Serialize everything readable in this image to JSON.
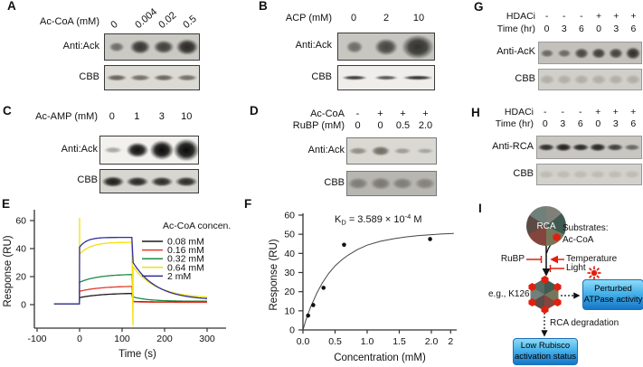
{
  "blots": {
    "A": {
      "letter": "A",
      "headers": [
        {
          "label": "Ac-CoA (mM)",
          "values": [
            "0",
            "0.004",
            "0.02",
            "0.5"
          ]
        }
      ],
      "rows": [
        {
          "label": "Anti:Ack",
          "bg": "#cac9c3",
          "border": "#3a3a3a",
          "color": "32,30,28",
          "bands": [
            {
              "i": 0.55,
              "w": 17,
              "h": 11
            },
            {
              "i": 0.88,
              "w": 23,
              "h": 16
            },
            {
              "i": 0.82,
              "w": 23,
              "h": 15
            },
            {
              "i": 0.95,
              "w": 25,
              "h": 18
            }
          ]
        },
        {
          "label": "CBB",
          "bg": "#dbdad4",
          "border": "#3a3a3a",
          "color": "72,66,58",
          "bands": [
            {
              "i": 0.8,
              "w": 23,
              "h": 7
            },
            {
              "i": 0.72,
              "w": 23,
              "h": 7
            },
            {
              "i": 0.78,
              "w": 23,
              "h": 7
            },
            {
              "i": 0.72,
              "w": 23,
              "h": 7
            }
          ]
        }
      ]
    },
    "B": {
      "letter": "B",
      "headers": [
        {
          "label": "ACP (mM)",
          "values": [
            "0",
            "2",
            "10"
          ]
        }
      ],
      "rows": [
        {
          "label": "Anti:Ack",
          "bg": "#c7c6c0",
          "border": "#3a3a3a",
          "color": "45,45,42",
          "bands": [
            {
              "i": 0.6,
              "w": 19,
              "h": 14
            },
            {
              "i": 0.85,
              "w": 26,
              "h": 19
            },
            {
              "i": 0.98,
              "w": 36,
              "h": 27
            }
          ]
        },
        {
          "label": "CBB",
          "bg": "#efeeea",
          "border": "#3a3a3a",
          "color": "28,28,26",
          "bands": [
            {
              "i": 0.88,
              "w": 28,
              "h": 5
            },
            {
              "i": 0.75,
              "w": 26,
              "h": 5
            },
            {
              "i": 0.92,
              "w": 34,
              "h": 5
            }
          ]
        }
      ]
    },
    "C": {
      "letter": "C",
      "headers": [
        {
          "label": "Ac-AMP (mM)",
          "values": [
            "0",
            "1",
            "3",
            "10"
          ]
        }
      ],
      "rows": [
        {
          "label": "Anti:Ack",
          "bg": "#f2f1ed",
          "border": "#3a3a3a",
          "color": "8,8,8",
          "bands": [
            {
              "i": 0.32,
              "w": 20,
              "h": 7
            },
            {
              "i": 0.97,
              "w": 25,
              "h": 17
            },
            {
              "i": 1,
              "w": 27,
              "h": 22
            },
            {
              "i": 1,
              "w": 29,
              "h": 25
            }
          ]
        },
        {
          "label": "CBB",
          "bg": "#d7d6d0",
          "border": "#3a3a3a",
          "color": "18,18,16",
          "bands": [
            {
              "i": 0.95,
              "w": 25,
              "h": 12
            },
            {
              "i": 0.9,
              "w": 25,
              "h": 11
            },
            {
              "i": 0.88,
              "w": 25,
              "h": 11
            },
            {
              "i": 0.88,
              "w": 25,
              "h": 11
            }
          ]
        }
      ]
    },
    "D": {
      "letter": "D",
      "headers": [
        {
          "label": "Ac-CoA",
          "values": [
            "-",
            "+",
            "+",
            "+"
          ]
        },
        {
          "label": "RuBP (mM)",
          "values": [
            "0",
            "0",
            "0.5",
            "2.0"
          ]
        }
      ],
      "rows": [
        {
          "label": "Anti:Ack",
          "bg": "#d9d8d2",
          "border": "#777777",
          "color": "82,78,68",
          "bands": [
            {
              "i": 0.55,
              "w": 21,
              "h": 8
            },
            {
              "i": 0.8,
              "w": 21,
              "h": 11
            },
            {
              "i": 0.45,
              "w": 19,
              "h": 7
            },
            {
              "i": 0.38,
              "w": 19,
              "h": 6
            }
          ]
        },
        {
          "label": "CBB",
          "bg": "#b7b6b1",
          "border": "#777777",
          "color": "96,92,86",
          "bands": [
            {
              "i": 0.65,
              "w": 23,
              "h": 13
            },
            {
              "i": 0.7,
              "w": 23,
              "h": 14
            },
            {
              "i": 0.65,
              "w": 23,
              "h": 13
            },
            {
              "i": 0.6,
              "w": 23,
              "h": 13
            }
          ]
        }
      ]
    },
    "G": {
      "letter": "G",
      "headers": [
        {
          "label": "HDACi",
          "values": [
            "-",
            "-",
            "-",
            "+",
            "+",
            "+"
          ]
        },
        {
          "label": "Time (hr)",
          "values": [
            "0",
            "3",
            "6",
            "0",
            "3",
            "6"
          ]
        }
      ],
      "rows": [
        {
          "label": "Anti-AcK",
          "bg": "#c3c1bb",
          "border": "#999999",
          "color": "42,40,36",
          "bands": [
            {
              "i": 0.6,
              "w": 15,
              "h": 9
            },
            {
              "i": 0.6,
              "w": 15,
              "h": 9
            },
            {
              "i": 0.82,
              "w": 16,
              "h": 12
            },
            {
              "i": 0.88,
              "w": 16,
              "h": 12
            },
            {
              "i": 0.85,
              "w": 16,
              "h": 12
            },
            {
              "i": 0.97,
              "w": 17,
              "h": 14
            }
          ]
        },
        {
          "label": "CBB",
          "bg": "#d1cfc9",
          "border": "#999999",
          "color": "150,146,138",
          "bands": [
            {
              "i": 0.55,
              "w": 17,
              "h": 11
            },
            {
              "i": 0.55,
              "w": 17,
              "h": 11
            },
            {
              "i": 0.55,
              "w": 17,
              "h": 11
            },
            {
              "i": 0.55,
              "w": 17,
              "h": 11
            },
            {
              "i": 0.55,
              "w": 17,
              "h": 11
            },
            {
              "i": 0.55,
              "w": 17,
              "h": 11
            }
          ]
        }
      ]
    },
    "H": {
      "letter": "H",
      "headers": [
        {
          "label": "HDACi",
          "values": [
            "-",
            "-",
            "-",
            "+",
            "+",
            "+"
          ]
        },
        {
          "label": "Time (hr)",
          "values": [
            "0",
            "3",
            "6",
            "0",
            "3",
            "6"
          ]
        }
      ],
      "rows": [
        {
          "label": "Anti-RCA",
          "bg": "#c9c7c1",
          "border": "#999999",
          "color": "22,20,18",
          "bands": [
            {
              "i": 0.88,
              "w": 19,
              "h": 8
            },
            {
              "i": 0.95,
              "w": 19,
              "h": 9
            },
            {
              "i": 0.9,
              "w": 19,
              "h": 8
            },
            {
              "i": 0.92,
              "w": 19,
              "h": 9
            },
            {
              "i": 0.78,
              "w": 19,
              "h": 8
            },
            {
              "i": 0.55,
              "w": 18,
              "h": 7
            }
          ]
        },
        {
          "label": "CBB",
          "bg": "#d3d1cb",
          "border": "#999999",
          "color": "158,154,146",
          "bands": [
            {
              "i": 0.4,
              "w": 18,
              "h": 9
            },
            {
              "i": 0.4,
              "w": 18,
              "h": 9
            },
            {
              "i": 0.4,
              "w": 18,
              "h": 9
            },
            {
              "i": 0.4,
              "w": 18,
              "h": 9
            },
            {
              "i": 0.4,
              "w": 18,
              "h": 9
            },
            {
              "i": 0.4,
              "w": 18,
              "h": 9
            }
          ]
        }
      ]
    }
  },
  "chart_data": [
    {
      "panel_letter": "E",
      "type": "line",
      "xlabel": "Time (s)",
      "ylabel": "Response (RU)",
      "x_ticks": [
        -100,
        0,
        100,
        200,
        300
      ],
      "y_ticks": [
        0,
        20,
        40,
        60
      ],
      "xlim": [
        -113,
        345
      ],
      "ylim": [
        -17,
        67
      ],
      "legend_title": "Ac-CoA concen.",
      "association_start": 0,
      "association_end": 125,
      "series": [
        {
          "name": "0.08 mM",
          "color": "#1a1a1a",
          "baseline": 0.5,
          "assoc_start": 5,
          "plateau": 8,
          "assoc_tau": 55,
          "post_drop": 2.3,
          "final": 1.8,
          "dissoc_tau": 45
        },
        {
          "name": "0.16 mM",
          "color": "#e23a28",
          "baseline": 0.5,
          "assoc_start": 9.5,
          "plateau": 13,
          "assoc_tau": 50,
          "post_drop": 2.0,
          "final": 1.6,
          "dissoc_tau": 45
        },
        {
          "name": "0.32 mM",
          "color": "#1d8c46",
          "baseline": 0.5,
          "assoc_start": 16,
          "plateau": 21.5,
          "assoc_tau": 45,
          "post_drop": 5.5,
          "final": 2.4,
          "dissoc_tau": 38
        },
        {
          "name": "0.64 mM",
          "color": "#f4e10a",
          "baseline": 0.5,
          "assoc_start": 36,
          "plateau": 44.5,
          "assoc_tau": 26,
          "post_drop": 27,
          "final": 4.5,
          "dissoc_tau": 55,
          "spike_up": 62,
          "spike_down": -15
        },
        {
          "name": "2 mM",
          "color": "#2e2e9c",
          "baseline": 0.5,
          "assoc_start": 41,
          "plateau": 48,
          "assoc_tau": 17,
          "post_drop": 30,
          "final": 3.2,
          "dissoc_tau": 55
        }
      ]
    },
    {
      "panel_letter": "F",
      "type": "scatter",
      "xlabel": "Concentration (mM)",
      "ylabel": "Response (RU)",
      "x_tick_labels": [
        "0.0",
        "0.5",
        "1.0",
        "1.5",
        "2.0",
        "2"
      ],
      "x_tick_values": [
        0,
        0.5,
        1.0,
        1.5,
        2.0,
        2.3
      ],
      "y_ticks": [
        0,
        10,
        20,
        30,
        40,
        50,
        60
      ],
      "kd_annotation": {
        "k": "K",
        "sub": "D",
        "eq": " = 3.589 × 10",
        "exp": "-4",
        "unit": " M"
      },
      "points": [
        [
          0.08,
          7.5
        ],
        [
          0.16,
          13
        ],
        [
          0.32,
          22
        ],
        [
          0.64,
          44.5
        ],
        [
          1.98,
          47.5
        ]
      ],
      "fit_curve": [
        [
          0,
          0
        ],
        [
          0.04,
          4.5
        ],
        [
          0.08,
          8.5
        ],
        [
          0.12,
          12
        ],
        [
          0.16,
          15
        ],
        [
          0.22,
          19.5
        ],
        [
          0.3,
          24.5
        ],
        [
          0.4,
          29.5
        ],
        [
          0.5,
          33.5
        ],
        [
          0.6,
          36.5
        ],
        [
          0.7,
          39
        ],
        [
          0.85,
          42
        ],
        [
          1.0,
          44.3
        ],
        [
          1.2,
          46.3
        ],
        [
          1.4,
          47.6
        ],
        [
          1.6,
          48.6
        ],
        [
          1.8,
          49.3
        ],
        [
          2.0,
          49.8
        ],
        [
          2.15,
          50.1
        ],
        [
          2.35,
          50.4
        ]
      ]
    }
  ],
  "diagram": {
    "letter": "I",
    "rca_label": "RCA",
    "substrates_line1": "Substrates:",
    "substrates_line2": "Ac-CoA",
    "rubp": "RuBP",
    "temperature": "Temperature",
    "light": "Light",
    "site": "e.g., K126",
    "box1_line1": "Perturbed",
    "box1_line2": "ATPase activity",
    "degradation": "RCA degradation",
    "box2_line1": "Low Rubisco",
    "box2_line2": "activation status",
    "accent_red": "#e11f0f"
  }
}
